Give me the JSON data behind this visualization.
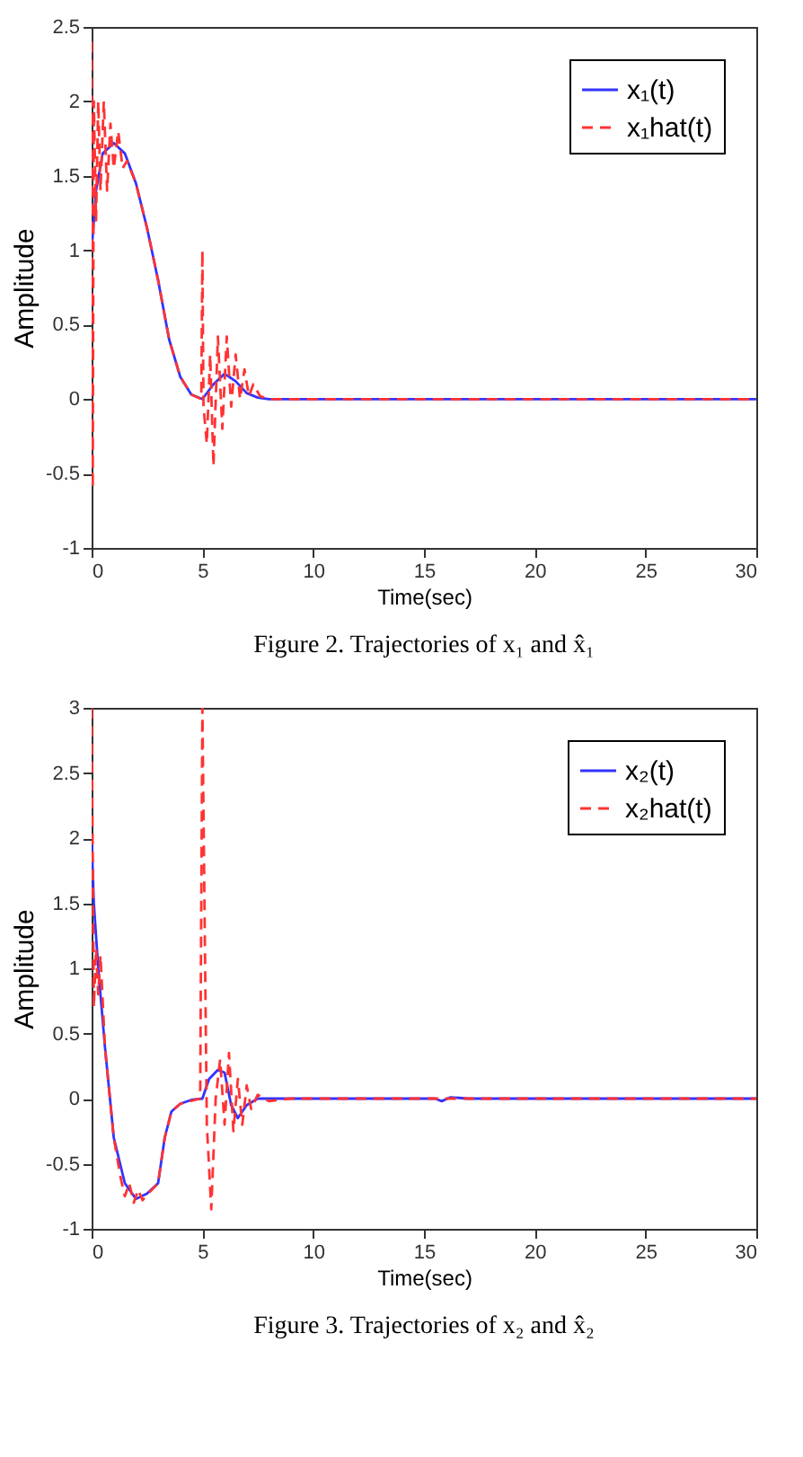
{
  "chart_data": [
    {
      "type": "line",
      "xlabel": "Time(sec)",
      "ylabel": "Amplitude",
      "annotations": [
        "Figure 2.    Trajectories of  x₁ and x̂₁"
      ],
      "xlim": [
        0,
        30
      ],
      "ylim": [
        -1,
        2.5
      ],
      "xticks": [
        0,
        5,
        10,
        15,
        20,
        25,
        30
      ],
      "yticks": [
        -1,
        -0.5,
        0,
        0.5,
        1,
        1.5,
        2,
        2.5
      ],
      "grid": false,
      "legend": "top right",
      "series": [
        {
          "name": "x₁(t)",
          "color": "#3333ff",
          "line_style": "solid",
          "x": [
            0,
            0.2,
            0.5,
            1.0,
            1.5,
            2.0,
            2.5,
            3.0,
            3.5,
            4.0,
            4.5,
            5.0,
            5.5,
            6.0,
            6.5,
            7.0,
            7.5,
            8.0,
            30
          ],
          "values": [
            1.0,
            1.4,
            1.65,
            1.72,
            1.65,
            1.45,
            1.15,
            0.8,
            0.4,
            0.15,
            0.03,
            0.0,
            0.1,
            0.17,
            0.12,
            0.04,
            0.01,
            0.0,
            0.0
          ]
        },
        {
          "name": "x₁hat(t)",
          "color": "#ff3333",
          "line_style": "dashed",
          "x": [
            0,
            0.05,
            0.1,
            0.2,
            0.3,
            0.4,
            0.55,
            0.7,
            0.85,
            1.0,
            1.2,
            1.4,
            1.6,
            2.0,
            2.5,
            3.0,
            3.5,
            4.0,
            4.5,
            4.95,
            5.0,
            5.05,
            5.2,
            5.35,
            5.5,
            5.7,
            5.9,
            6.1,
            6.3,
            6.5,
            6.7,
            6.9,
            7.1,
            7.3,
            7.6,
            8.0,
            30
          ],
          "values": [
            2.4,
            -0.6,
            2.0,
            1.2,
            2.0,
            1.4,
            2.0,
            1.4,
            1.85,
            1.55,
            1.8,
            1.55,
            1.6,
            1.45,
            1.15,
            0.8,
            0.4,
            0.15,
            0.03,
            0.0,
            1.0,
            -0.05,
            -0.3,
            0.3,
            -0.45,
            0.42,
            -0.2,
            0.42,
            -0.05,
            0.3,
            0.0,
            0.2,
            0.02,
            0.1,
            0.02,
            0.0,
            0.0
          ]
        }
      ]
    },
    {
      "type": "line",
      "xlabel": "Time(sec)",
      "ylabel": "Amplitude",
      "annotations": [
        "Figure 3.    Trajectories of  x₂ and x̂₂"
      ],
      "xlim": [
        0,
        30
      ],
      "ylim": [
        -1,
        3
      ],
      "xticks": [
        0,
        5,
        10,
        15,
        20,
        25,
        30
      ],
      "yticks": [
        -1,
        -0.5,
        0,
        0.5,
        1,
        1.5,
        2,
        2.5,
        3
      ],
      "grid": false,
      "legend": "top right",
      "series": [
        {
          "name": "x₂(t)",
          "color": "#3333ff",
          "line_style": "solid",
          "x": [
            0,
            0.1,
            0.3,
            0.6,
            1.0,
            1.5,
            2.0,
            2.5,
            3.0,
            3.3,
            3.6,
            4.0,
            4.5,
            5.0,
            5.3,
            5.7,
            6.0,
            6.3,
            6.6,
            7.0,
            7.5,
            15.5,
            15.8,
            16.2,
            17.0,
            30
          ],
          "values": [
            2.0,
            1.5,
            1.0,
            0.4,
            -0.3,
            -0.65,
            -0.77,
            -0.73,
            -0.65,
            -0.3,
            -0.1,
            -0.04,
            -0.01,
            0.0,
            0.15,
            0.22,
            0.2,
            -0.05,
            -0.15,
            -0.05,
            0.0,
            0.0,
            -0.02,
            0.01,
            0.0,
            0.0
          ]
        },
        {
          "name": "x₂hat(t)",
          "color": "#ff3333",
          "line_style": "dashed",
          "x": [
            0,
            0.1,
            0.2,
            0.3,
            0.4,
            0.6,
            1.0,
            1.3,
            1.5,
            1.7,
            1.9,
            2.1,
            2.3,
            2.6,
            3.0,
            3.3,
            3.6,
            4.0,
            4.9,
            5.0,
            5.2,
            5.4,
            5.6,
            5.8,
            6.0,
            6.2,
            6.4,
            6.6,
            6.8,
            7.0,
            7.2,
            7.5,
            8.0,
            9.0,
            30
          ],
          "values": [
            3.0,
            0.7,
            1.15,
            0.8,
            1.1,
            0.4,
            -0.3,
            -0.6,
            -0.75,
            -0.65,
            -0.8,
            -0.7,
            -0.78,
            -0.72,
            -0.65,
            -0.3,
            -0.1,
            -0.04,
            0.0,
            3.0,
            -0.2,
            -0.85,
            0.0,
            0.3,
            -0.2,
            0.35,
            -0.25,
            0.15,
            -0.2,
            0.1,
            -0.08,
            0.03,
            -0.02,
            0.0,
            0.0
          ]
        }
      ]
    }
  ]
}
